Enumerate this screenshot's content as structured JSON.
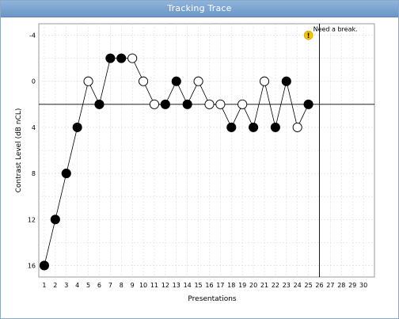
{
  "window": {
    "title": "Tracking Trace"
  },
  "chart_data": {
    "type": "line",
    "title": "",
    "xlabel": "Presentations",
    "ylabel": "Contrast Level (dB nCL)",
    "xlim": [
      0.5,
      31
    ],
    "ylim": [
      17,
      -5
    ],
    "x_ticks": [
      1,
      2,
      3,
      4,
      5,
      6,
      7,
      8,
      9,
      10,
      11,
      12,
      13,
      14,
      15,
      16,
      17,
      18,
      19,
      20,
      21,
      22,
      23,
      24,
      25,
      26,
      27,
      28,
      29,
      30
    ],
    "y_ticks": [
      -4,
      0,
      4,
      8,
      12,
      16
    ],
    "y_inverted": true,
    "grid": true,
    "reference_line_y": 2,
    "reference_line_x": 26,
    "series": [
      {
        "x": [
          1,
          2,
          3,
          4,
          5,
          6,
          7,
          8,
          9,
          10,
          11,
          12,
          13,
          14,
          15,
          16,
          17,
          18,
          19,
          20,
          21,
          22,
          23,
          24,
          25
        ],
        "y": [
          16,
          12,
          8,
          4,
          0,
          2,
          -2,
          -2,
          -2,
          0,
          2,
          2,
          0,
          2,
          0,
          2,
          2,
          4,
          2,
          4,
          0,
          4,
          0,
          4,
          2
        ],
        "filled": [
          true,
          true,
          true,
          true,
          false,
          true,
          true,
          true,
          false,
          false,
          false,
          true,
          true,
          true,
          false,
          false,
          false,
          true,
          false,
          true,
          false,
          true,
          true,
          false,
          true
        ]
      }
    ],
    "annotations": [
      {
        "text": "Need a break.",
        "x": 25,
        "y": -4,
        "icon": "warning-icon",
        "icon_color": "#f5c400"
      }
    ]
  }
}
